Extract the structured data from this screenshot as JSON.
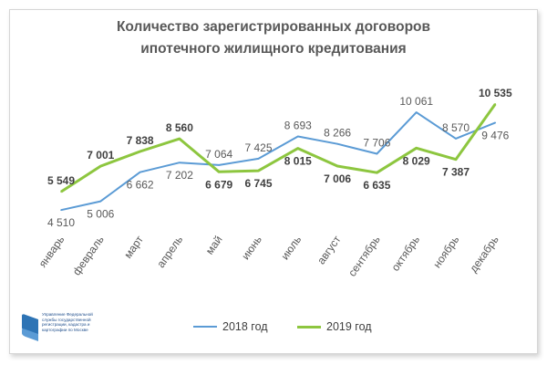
{
  "chart_data": {
    "type": "line",
    "title_lines": [
      "Количество зарегистрированных договоров",
      "ипотечного жилищного кредитования"
    ],
    "categories": [
      "январь",
      "февраль",
      "март",
      "апрель",
      "май",
      "июнь",
      "июль",
      "август",
      "сентябрь",
      "октябрь",
      "ноябрь",
      "декабрь"
    ],
    "series": [
      {
        "name": "2018 год",
        "color": "#5b9bd5",
        "values": [
          4510,
          5006,
          6662,
          7202,
          7064,
          7425,
          8693,
          8266,
          7706,
          10061,
          8570,
          9476
        ],
        "labels": [
          "4 510",
          "5 006",
          "6 662",
          "7 202",
          "7 064",
          "7 425",
          "8 693",
          "8 266",
          "7 706",
          "10 061",
          "8 570",
          "9 476"
        ]
      },
      {
        "name": "2019 год",
        "color": "#8dc63f",
        "values": [
          5549,
          7001,
          7838,
          8560,
          6679,
          6745,
          8015,
          7006,
          6635,
          8029,
          7387,
          10535
        ],
        "labels": [
          "5 549",
          "7 001",
          "7 838",
          "8 560",
          "6 679",
          "6 745",
          "8 015",
          "7 006",
          "6 635",
          "8 029",
          "7 387",
          "10 535"
        ]
      }
    ],
    "ylim": [
      4000,
      11000
    ],
    "grid": false,
    "legend_position": "bottom"
  },
  "logo": {
    "icon": "rosreestr-logo-icon",
    "lines": [
      "Управление Федеральной",
      "службы государственной",
      "регистрации, кадастра и",
      "картографии по Москве"
    ]
  }
}
